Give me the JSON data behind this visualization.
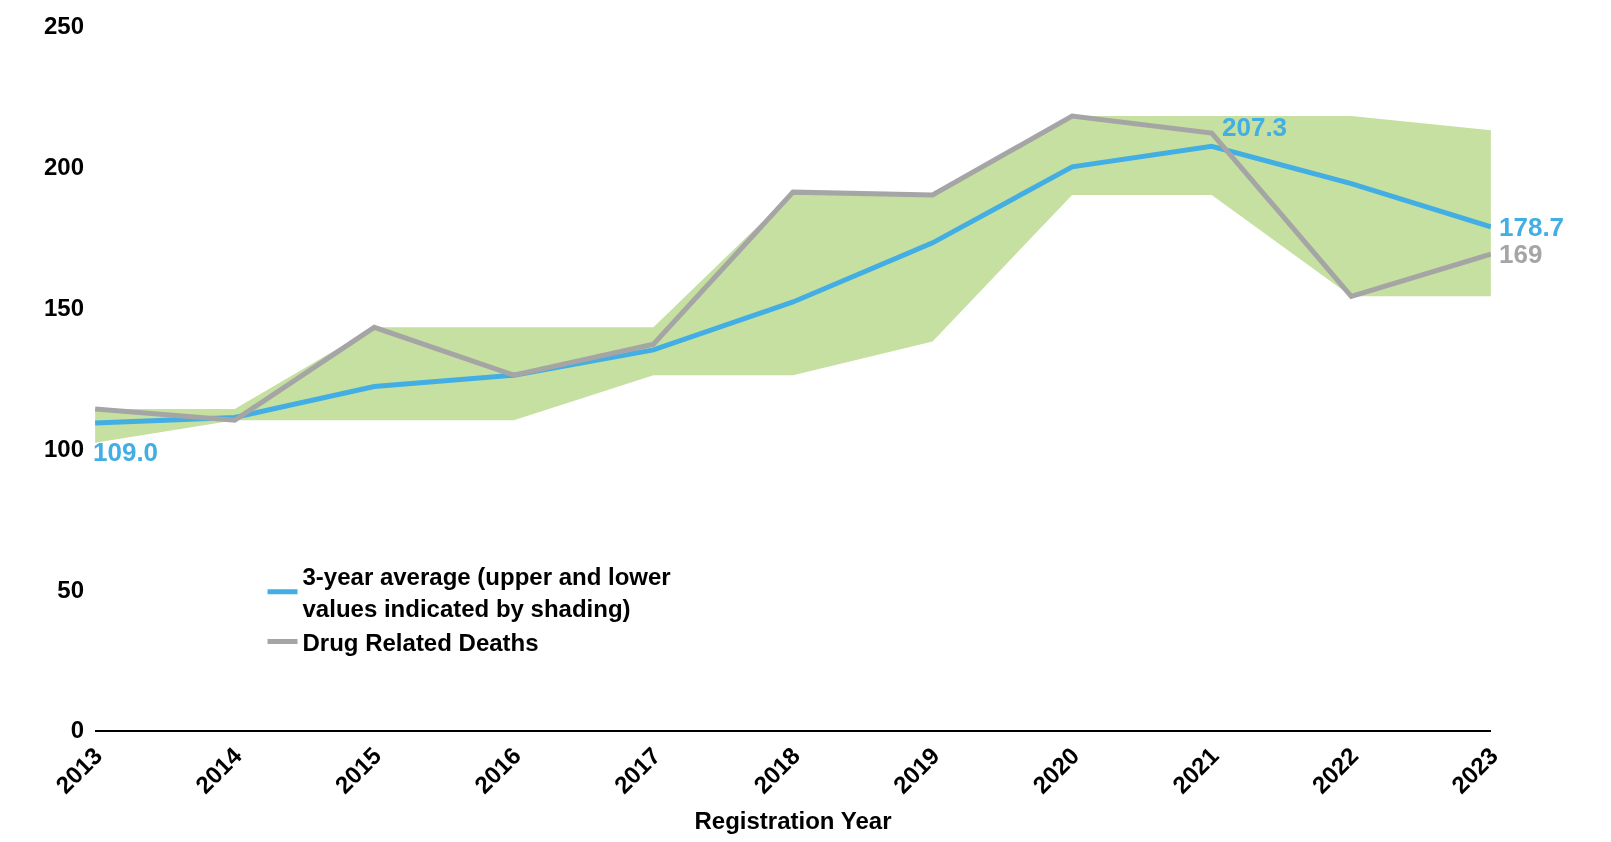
{
  "chart_data": {
    "type": "line",
    "xlabel": "Registration Year",
    "categories": [
      "2013",
      "2014",
      "2015",
      "2016",
      "2017",
      "2018",
      "2019",
      "2020",
      "2021",
      "2022",
      "2023"
    ],
    "series": [
      {
        "name": "3-year average (upper and lower values indicated by shading)",
        "color": "#42aee3",
        "values": [
          109.0,
          111,
          122,
          126,
          135,
          152,
          173,
          200,
          207.3,
          194,
          178.7
        ],
        "lower": [
          102,
          110,
          110,
          110,
          126,
          126,
          138,
          190,
          190,
          154,
          154
        ],
        "upper": [
          114,
          114,
          143,
          143,
          143,
          191,
          190,
          218,
          218,
          218,
          213
        ],
        "value_labels": [
          "109.0",
          null,
          null,
          null,
          null,
          null,
          null,
          null,
          "207.3",
          null,
          "178.7"
        ]
      },
      {
        "name": "Drug Related Deaths",
        "color": "#a5a5a5",
        "values": [
          114,
          110,
          143,
          126,
          137,
          191,
          190,
          218,
          212,
          154,
          169
        ],
        "value_labels": [
          null,
          null,
          null,
          null,
          null,
          null,
          null,
          null,
          null,
          null,
          "169"
        ]
      }
    ],
    "ylim": [
      0,
      250
    ],
    "yticks": [
      0,
      50,
      100,
      150,
      200,
      250
    ],
    "legend": "bottom",
    "marker": "none",
    "line_style": "solid"
  }
}
